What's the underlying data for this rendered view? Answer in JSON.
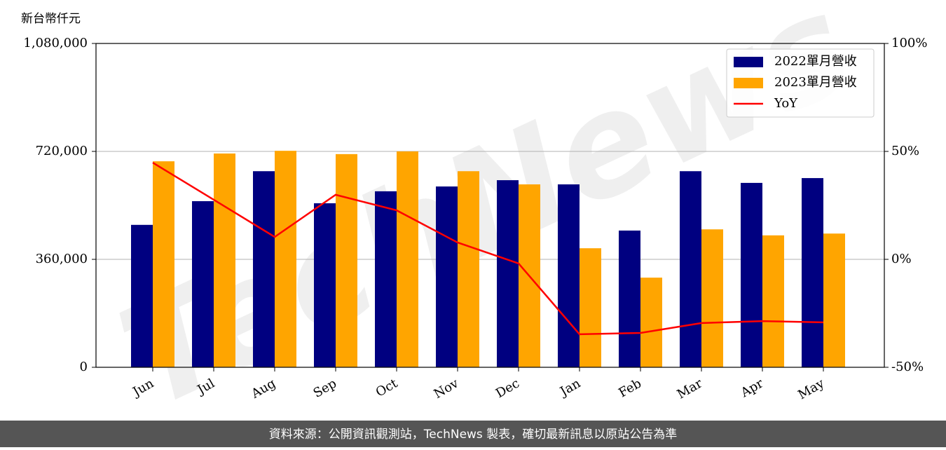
{
  "chart_data": {
    "type": "bar-line",
    "y_label": "新台幣仟元",
    "watermark": "TechNews",
    "footer": "資料來源：公開資訊觀測站，TechNews 製表，確切最新訊息以原站公告為準",
    "categories": [
      "Jun",
      "Jul",
      "Aug",
      "Sep",
      "Oct",
      "Nov",
      "Dec",
      "Jan",
      "Feb",
      "Mar",
      "Apr",
      "May"
    ],
    "series": [
      {
        "name": "2022單月營收",
        "color": "#000080",
        "values": [
          475000,
          554000,
          654000,
          547000,
          587000,
          603000,
          624000,
          610000,
          456000,
          654000,
          615000,
          631000
        ]
      },
      {
        "name": "2023單月營收",
        "color": "#ffa500",
        "values": [
          687000,
          713000,
          722000,
          711000,
          720000,
          654000,
          610000,
          397000,
          299000,
          460000,
          440000,
          446000
        ]
      },
      {
        "name": "YoY",
        "color": "#ff0000",
        "axis": "y2",
        "values": [
          44.8,
          27.6,
          10.4,
          29.9,
          22.7,
          7.8,
          -1.9,
          -34.7,
          -34.1,
          -29.5,
          -28.6,
          -29.2
        ]
      }
    ],
    "ylim": [
      0,
      1080000
    ],
    "yticks": [
      {
        "value": 0,
        "label": "0"
      },
      {
        "value": 360000,
        "label": "360,000"
      },
      {
        "value": 720000,
        "label": "720,000"
      },
      {
        "value": 1080000,
        "label": "1,080,000"
      }
    ],
    "y2lim": [
      -50,
      100
    ],
    "y2ticks": [
      {
        "value": -50,
        "label": "-50%"
      },
      {
        "value": 0,
        "label": "0%"
      },
      {
        "value": 50,
        "label": "50%"
      },
      {
        "value": 100,
        "label": "100%"
      }
    ],
    "grid": true,
    "legend": "upper right"
  }
}
